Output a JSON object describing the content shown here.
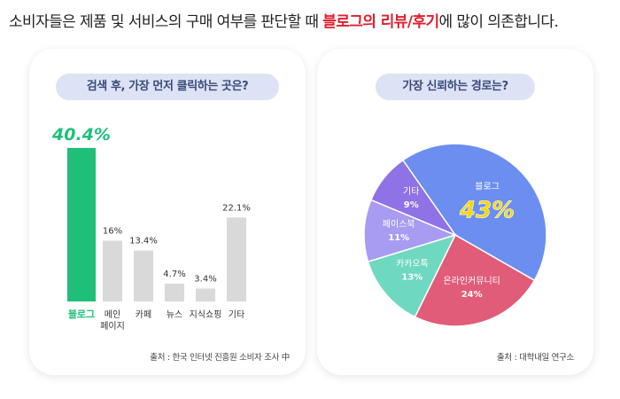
{
  "headline": {
    "before": "소비자들은 제품 및 서비스의 구매 여부를 판단할 때 ",
    "highlight": "블로그의 리뷰/후기",
    "after": "에 많이 의존합니다."
  },
  "left_card": {
    "title": "검색 후, 가장 먼저 클릭하는 곳은?",
    "source": "출처 : 한국 인터넷 진흥원 소비자 조사 中"
  },
  "right_card": {
    "title": "가장 신뢰하는 경로는?",
    "source": "출처 : 대학내일 연구소"
  },
  "colors": {
    "highlight_bar": "#1fbf7a",
    "gray_bar": "#d9d9d9",
    "headline_accent": "#e0202e"
  },
  "chart_data": [
    {
      "type": "bar",
      "title": "검색 후, 가장 먼저 클릭하는 곳은?",
      "categories": [
        [
          "블로그"
        ],
        [
          "메인",
          "페이지"
        ],
        [
          "카페"
        ],
        [
          "뉴스"
        ],
        [
          "지식쇼핑"
        ],
        [
          "기타"
        ]
      ],
      "values": [
        40.4,
        16,
        13.4,
        4.7,
        3.4,
        22.1
      ],
      "labels": [
        "40.4%",
        "16%",
        "13.4%",
        "4.7%",
        "3.4%",
        "22.1%"
      ],
      "highlight_index": 0,
      "ylim": [
        0,
        42
      ]
    },
    {
      "type": "pie",
      "title": "가장 신뢰하는 경로는?",
      "slices": [
        {
          "name": "블로그",
          "value": 43,
          "label": "43%",
          "color": "#6b8ef0"
        },
        {
          "name": "온라인커뮤니티",
          "value": 24,
          "label": "24%",
          "color": "#e05c78"
        },
        {
          "name": "카카오톡",
          "value": 13,
          "label": "13%",
          "color": "#6fd8c0"
        },
        {
          "name": "페이스북",
          "value": 11,
          "label": "11%",
          "color": "#a89bf2"
        },
        {
          "name": "기타",
          "value": 9,
          "label": "9%",
          "color": "#8e72e6"
        }
      ]
    }
  ]
}
